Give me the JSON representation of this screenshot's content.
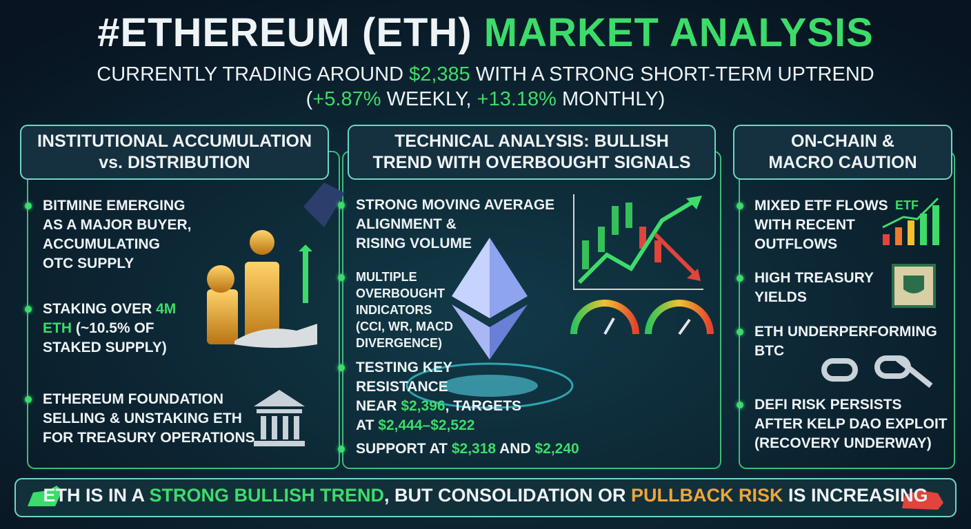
{
  "header": {
    "title": [
      "#ETHEREUM (ETH) ",
      {
        "text": "MARKET ANALYSIS",
        "color": "#3ddc6a"
      }
    ],
    "subtitle": [
      [
        "CURRENTLY TRADING AROUND ",
        {
          "text": "$2,385",
          "color": "#3ddc6a"
        },
        " WITH A STRONG SHORT-TERM UPTREND"
      ],
      [
        "(",
        {
          "text": "+5.87%",
          "color": "#3ddc6a"
        },
        " WEEKLY, ",
        {
          "text": "+13.18%",
          "color": "#3ddc6a"
        },
        " MONTHLY)"
      ]
    ]
  },
  "panels": [
    {
      "title": [
        "INSTITUTIONAL ACCUMULATION",
        "vs. DISTRIBUTION"
      ],
      "items": [
        [
          "BITMINE EMERGING",
          "AS A MAJOR BUYER,",
          "ACCUMULATING",
          "OTC SUPPLY"
        ],
        [
          [
            "STAKING OVER ",
            {
              "text": "4M",
              "color": "#3ddc6a"
            }
          ],
          [
            {
              "text": "ETH",
              "color": "#3ddc6a"
            },
            " (~10.5% OF"
          ],
          "STAKED SUPPLY)"
        ],
        [
          "ETHEREUM FOUNDATION",
          "SELLING & UNSTAKING ETH",
          "FOR TREASURY OPERATIONS"
        ]
      ]
    },
    {
      "title": [
        "TECHNICAL ANALYSIS: BULLISH",
        "TREND WITH OVERBOUGHT SIGNALS"
      ],
      "items": [
        [
          "STRONG MOVING AVERAGE",
          "ALIGNMENT &",
          "RISING VOLUME"
        ],
        [
          "MULTIPLE",
          "OVERBOUGHT",
          "INDICATORS",
          "(CCI, WR, MACD",
          "DIVERGENCE)"
        ],
        [
          "TESTING KEY",
          "RESISTANCE",
          [
            "NEAR ",
            {
              "text": "$2,396",
              "color": "#3ddc6a"
            },
            ", TARGETS"
          ],
          [
            "AT ",
            {
              "text": "$2,444–$2,522",
              "color": "#3ddc6a"
            }
          ]
        ],
        [
          [
            "SUPPORT AT ",
            {
              "text": "$2,318",
              "color": "#3ddc6a"
            },
            " AND ",
            {
              "text": "$2,240",
              "color": "#3ddc6a"
            }
          ]
        ]
      ]
    },
    {
      "title": [
        "ON-CHAIN &",
        "MACRO CAUTION"
      ],
      "icon_label": "ETF",
      "items": [
        [
          "MIXED ETF FLOWS",
          "WITH RECENT",
          "OUTFLOWS"
        ],
        [
          "HIGH TREASURY",
          "YIELDS"
        ],
        [
          "ETH UNDERPERFORMING",
          "BTC"
        ],
        [
          "DEFI RISK PERSISTS",
          "AFTER KELP DAO EXPLOIT",
          "(RECOVERY UNDERWAY)"
        ]
      ]
    }
  ],
  "footer": [
    "ETH IS IN A ",
    {
      "text": "STRONG BULLISH TREND",
      "color": "#3ddc6a"
    },
    ", BUT CONSOLIDATION OR ",
    {
      "text": "PULLBACK RISK",
      "color": "#f0a53a"
    },
    " IS INCREASING"
  ]
}
